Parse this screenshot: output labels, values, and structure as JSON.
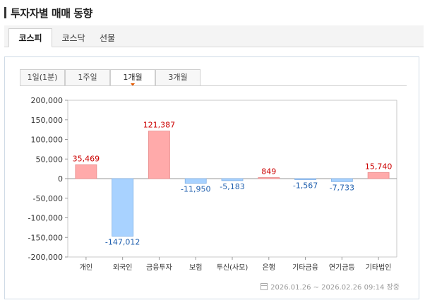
{
  "page": {
    "title": "투자자별 매매 동향"
  },
  "market_tabs": [
    {
      "label": "코스피",
      "active": true
    },
    {
      "label": "코스닥",
      "active": false
    },
    {
      "label": "선물",
      "active": false
    }
  ],
  "period_tabs": [
    {
      "label": "1일(1분)",
      "active": false
    },
    {
      "label": "1주일",
      "active": false
    },
    {
      "label": "1개월",
      "active": true
    },
    {
      "label": "3개월",
      "active": false
    }
  ],
  "footer": {
    "date_range": "2026.01.26 ~ 2026.02.26 09:14 장중"
  },
  "colors": {
    "positive_fill": "#ffaaaa",
    "positive_text": "#cc0000",
    "negative_fill": "#a8d2ff",
    "negative_text": "#1f5fae"
  },
  "chart_data": {
    "type": "bar",
    "categories": [
      "개인",
      "외국인",
      "금융투자",
      "보험",
      "투신(사모)",
      "은행",
      "기타금융",
      "연기금등",
      "기타법인"
    ],
    "values": [
      35469,
      -147012,
      121387,
      -11950,
      -5183,
      849,
      -1567,
      -7733,
      15740
    ],
    "value_labels": [
      "35,469",
      "-147,012",
      "121,387",
      "-11,950",
      "-5,183",
      "849",
      "-1,567",
      "-7,733",
      "15,740"
    ],
    "ylim": [
      -200000,
      200000
    ],
    "yticks": [
      "200,000",
      "150,000",
      "100,000",
      "50,000",
      "0",
      "-50,000",
      "-100,000",
      "-150,000",
      "-200,000"
    ],
    "ytick_values": [
      200000,
      150000,
      100000,
      50000,
      0,
      -50000,
      -100000,
      -150000,
      -200000
    ],
    "grid": false
  }
}
